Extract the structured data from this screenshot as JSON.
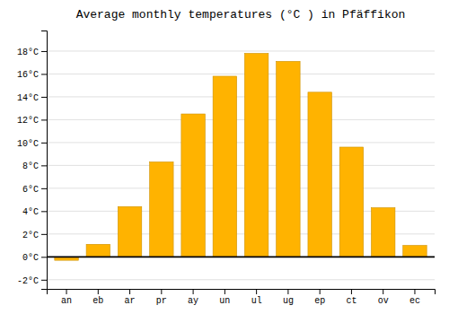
{
  "chart_data": {
    "type": "bar",
    "title": "Average monthly temperatures (°C ) in Pfäffikon",
    "categories": [
      "an",
      "eb",
      "ar",
      "pr",
      "ay",
      "un",
      "ul",
      "ug",
      "ep",
      "ct",
      "ov",
      "ec"
    ],
    "values": [
      -0.3,
      1.1,
      4.4,
      8.3,
      12.5,
      15.8,
      17.8,
      17.1,
      14.4,
      9.6,
      4.3,
      1.0
    ],
    "color": "#FFB300",
    "ylim": [
      -2.8,
      19.8
    ],
    "yticks": [
      {
        "value": -2,
        "label": "-2°C"
      },
      {
        "value": 0,
        "label": "0°C"
      },
      {
        "value": 2,
        "label": "2°C"
      },
      {
        "value": 4,
        "label": "4°C"
      },
      {
        "value": 6,
        "label": "6°C"
      },
      {
        "value": 8,
        "label": "8°C"
      },
      {
        "value": 10,
        "label": "10°C"
      },
      {
        "value": 12,
        "label": "12°C"
      },
      {
        "value": 14,
        "label": "14°C"
      },
      {
        "value": 16,
        "label": "16°C"
      },
      {
        "value": 18,
        "label": "18°C"
      }
    ],
    "grid": true
  }
}
